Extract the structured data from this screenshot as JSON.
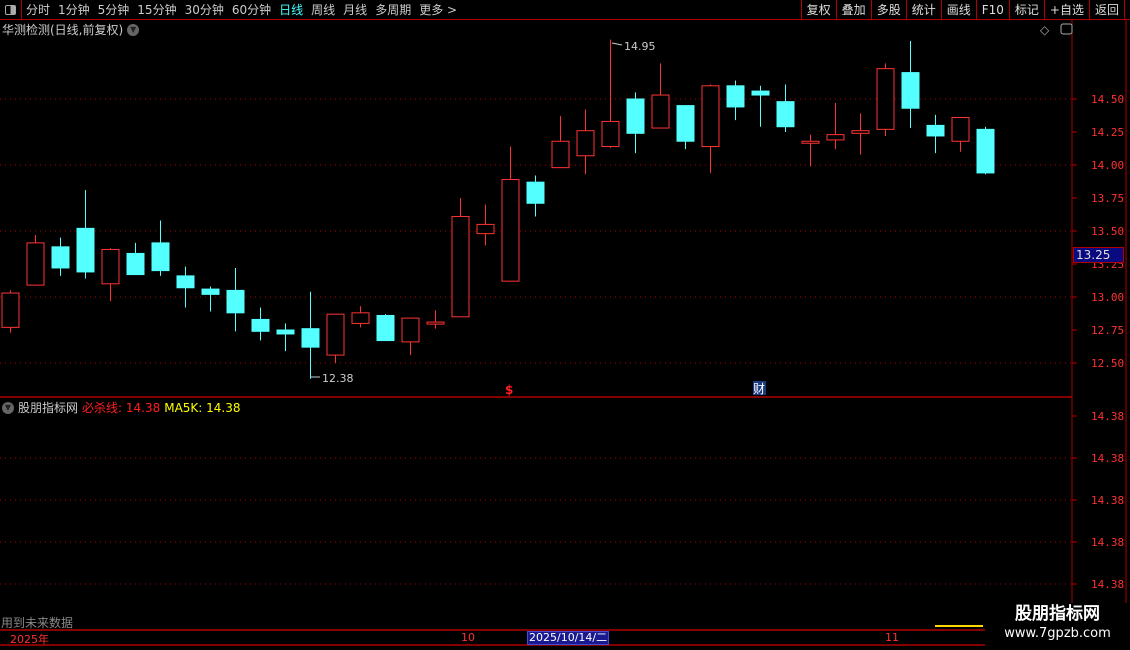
{
  "toolbar": {
    "periods": [
      "分时",
      "1分钟",
      "5分钟",
      "15分钟",
      "30分钟",
      "60分钟",
      "日线",
      "周线",
      "月线",
      "多周期",
      "更多 >"
    ],
    "active_period": "日线",
    "buttons": [
      "复权",
      "叠加",
      "多股",
      "统计",
      "画线",
      "F10",
      "标记",
      "+自选",
      "返回"
    ]
  },
  "main": {
    "title": "华测检测(日线,前复权)",
    "price_ticks": [
      "14.50",
      "14.25",
      "14.00",
      "13.75",
      "13.50",
      "13.25",
      "13.00",
      "12.75",
      "12.50"
    ],
    "cursor_price": "13.25",
    "high_label": "14.95",
    "low_label": "12.38",
    "markers": [
      "$",
      "财"
    ]
  },
  "indicator": {
    "name": "股朋指标网",
    "line1_label": "必杀线: 14.38",
    "line2_label": "MA5K: 14.38",
    "ticks": [
      "14.38",
      "14.38",
      "14.38",
      "14.38",
      "14.38"
    ],
    "future_note": "用到未来数据"
  },
  "time_axis": {
    "year": "2025年",
    "oct": "10",
    "cursor_date": "2025/10/14/二",
    "nov": "11"
  },
  "watermark": {
    "name": "股朋指标网",
    "url": "www.7gpzb.com"
  },
  "colors": {
    "up": "#ff3333",
    "down": "#54ffff",
    "grid": "#b00000",
    "active": "#4ff"
  },
  "chart_data": {
    "type": "candlestick",
    "ylim": [
      12.3,
      15.0
    ],
    "candles": [
      {
        "o": 12.77,
        "h": 13.05,
        "l": 12.73,
        "c": 13.03
      },
      {
        "o": 13.09,
        "h": 13.47,
        "l": 13.09,
        "c": 13.41
      },
      {
        "o": 13.38,
        "h": 13.45,
        "l": 13.16,
        "c": 13.22
      },
      {
        "o": 13.52,
        "h": 13.81,
        "l": 13.14,
        "c": 13.19
      },
      {
        "o": 13.1,
        "h": 13.37,
        "l": 12.97,
        "c": 13.36
      },
      {
        "o": 13.33,
        "h": 13.41,
        "l": 13.17,
        "c": 13.17
      },
      {
        "o": 13.41,
        "h": 13.58,
        "l": 13.16,
        "c": 13.2
      },
      {
        "o": 13.16,
        "h": 13.23,
        "l": 12.92,
        "c": 13.07
      },
      {
        "o": 13.06,
        "h": 13.08,
        "l": 12.89,
        "c": 13.02
      },
      {
        "o": 13.05,
        "h": 13.22,
        "l": 12.74,
        "c": 12.88
      },
      {
        "o": 12.83,
        "h": 12.92,
        "l": 12.67,
        "c": 12.74
      },
      {
        "o": 12.75,
        "h": 12.8,
        "l": 12.59,
        "c": 12.72
      },
      {
        "o": 12.76,
        "h": 13.04,
        "l": 12.38,
        "c": 12.62
      },
      {
        "o": 12.56,
        "h": 12.87,
        "l": 12.5,
        "c": 12.87
      },
      {
        "o": 12.8,
        "h": 12.93,
        "l": 12.77,
        "c": 12.88
      },
      {
        "o": 12.86,
        "h": 12.87,
        "l": 12.67,
        "c": 12.67
      },
      {
        "o": 12.66,
        "h": 12.84,
        "l": 12.56,
        "c": 12.84
      },
      {
        "o": 12.81,
        "h": 12.9,
        "l": 12.76,
        "c": 12.81
      },
      {
        "o": 12.85,
        "h": 13.75,
        "l": 12.85,
        "c": 13.61
      },
      {
        "o": 13.48,
        "h": 13.7,
        "l": 13.39,
        "c": 13.55
      },
      {
        "o": 13.12,
        "h": 14.14,
        "l": 13.12,
        "c": 13.89
      },
      {
        "o": 13.87,
        "h": 13.92,
        "l": 13.61,
        "c": 13.71
      },
      {
        "o": 13.98,
        "h": 14.37,
        "l": 13.98,
        "c": 14.18
      },
      {
        "o": 14.07,
        "h": 14.42,
        "l": 13.93,
        "c": 14.26
      },
      {
        "o": 14.14,
        "h": 14.95,
        "l": 14.13,
        "c": 14.33
      },
      {
        "o": 14.5,
        "h": 14.55,
        "l": 14.09,
        "c": 14.24
      },
      {
        "o": 14.28,
        "h": 14.77,
        "l": 14.28,
        "c": 14.53
      },
      {
        "o": 14.45,
        "h": 14.45,
        "l": 14.12,
        "c": 14.18
      },
      {
        "o": 14.14,
        "h": 14.61,
        "l": 13.94,
        "c": 14.6
      },
      {
        "o": 14.6,
        "h": 14.64,
        "l": 14.34,
        "c": 14.44
      },
      {
        "o": 14.56,
        "h": 14.6,
        "l": 14.29,
        "c": 14.53
      },
      {
        "o": 14.48,
        "h": 14.61,
        "l": 14.25,
        "c": 14.29
      },
      {
        "o": 14.18,
        "h": 14.23,
        "l": 13.99,
        "c": 14.18
      },
      {
        "o": 14.19,
        "h": 14.47,
        "l": 14.12,
        "c": 14.23
      },
      {
        "o": 14.24,
        "h": 14.39,
        "l": 14.08,
        "c": 14.26
      },
      {
        "o": 14.27,
        "h": 14.77,
        "l": 14.22,
        "c": 14.73
      },
      {
        "o": 14.7,
        "h": 14.94,
        "l": 14.28,
        "c": 14.43
      },
      {
        "o": 14.3,
        "h": 14.38,
        "l": 14.09,
        "c": 14.22
      },
      {
        "o": 14.18,
        "h": 14.36,
        "l": 14.1,
        "c": 14.36
      },
      {
        "o": 14.27,
        "h": 14.29,
        "l": 13.93,
        "c": 13.94
      }
    ]
  }
}
